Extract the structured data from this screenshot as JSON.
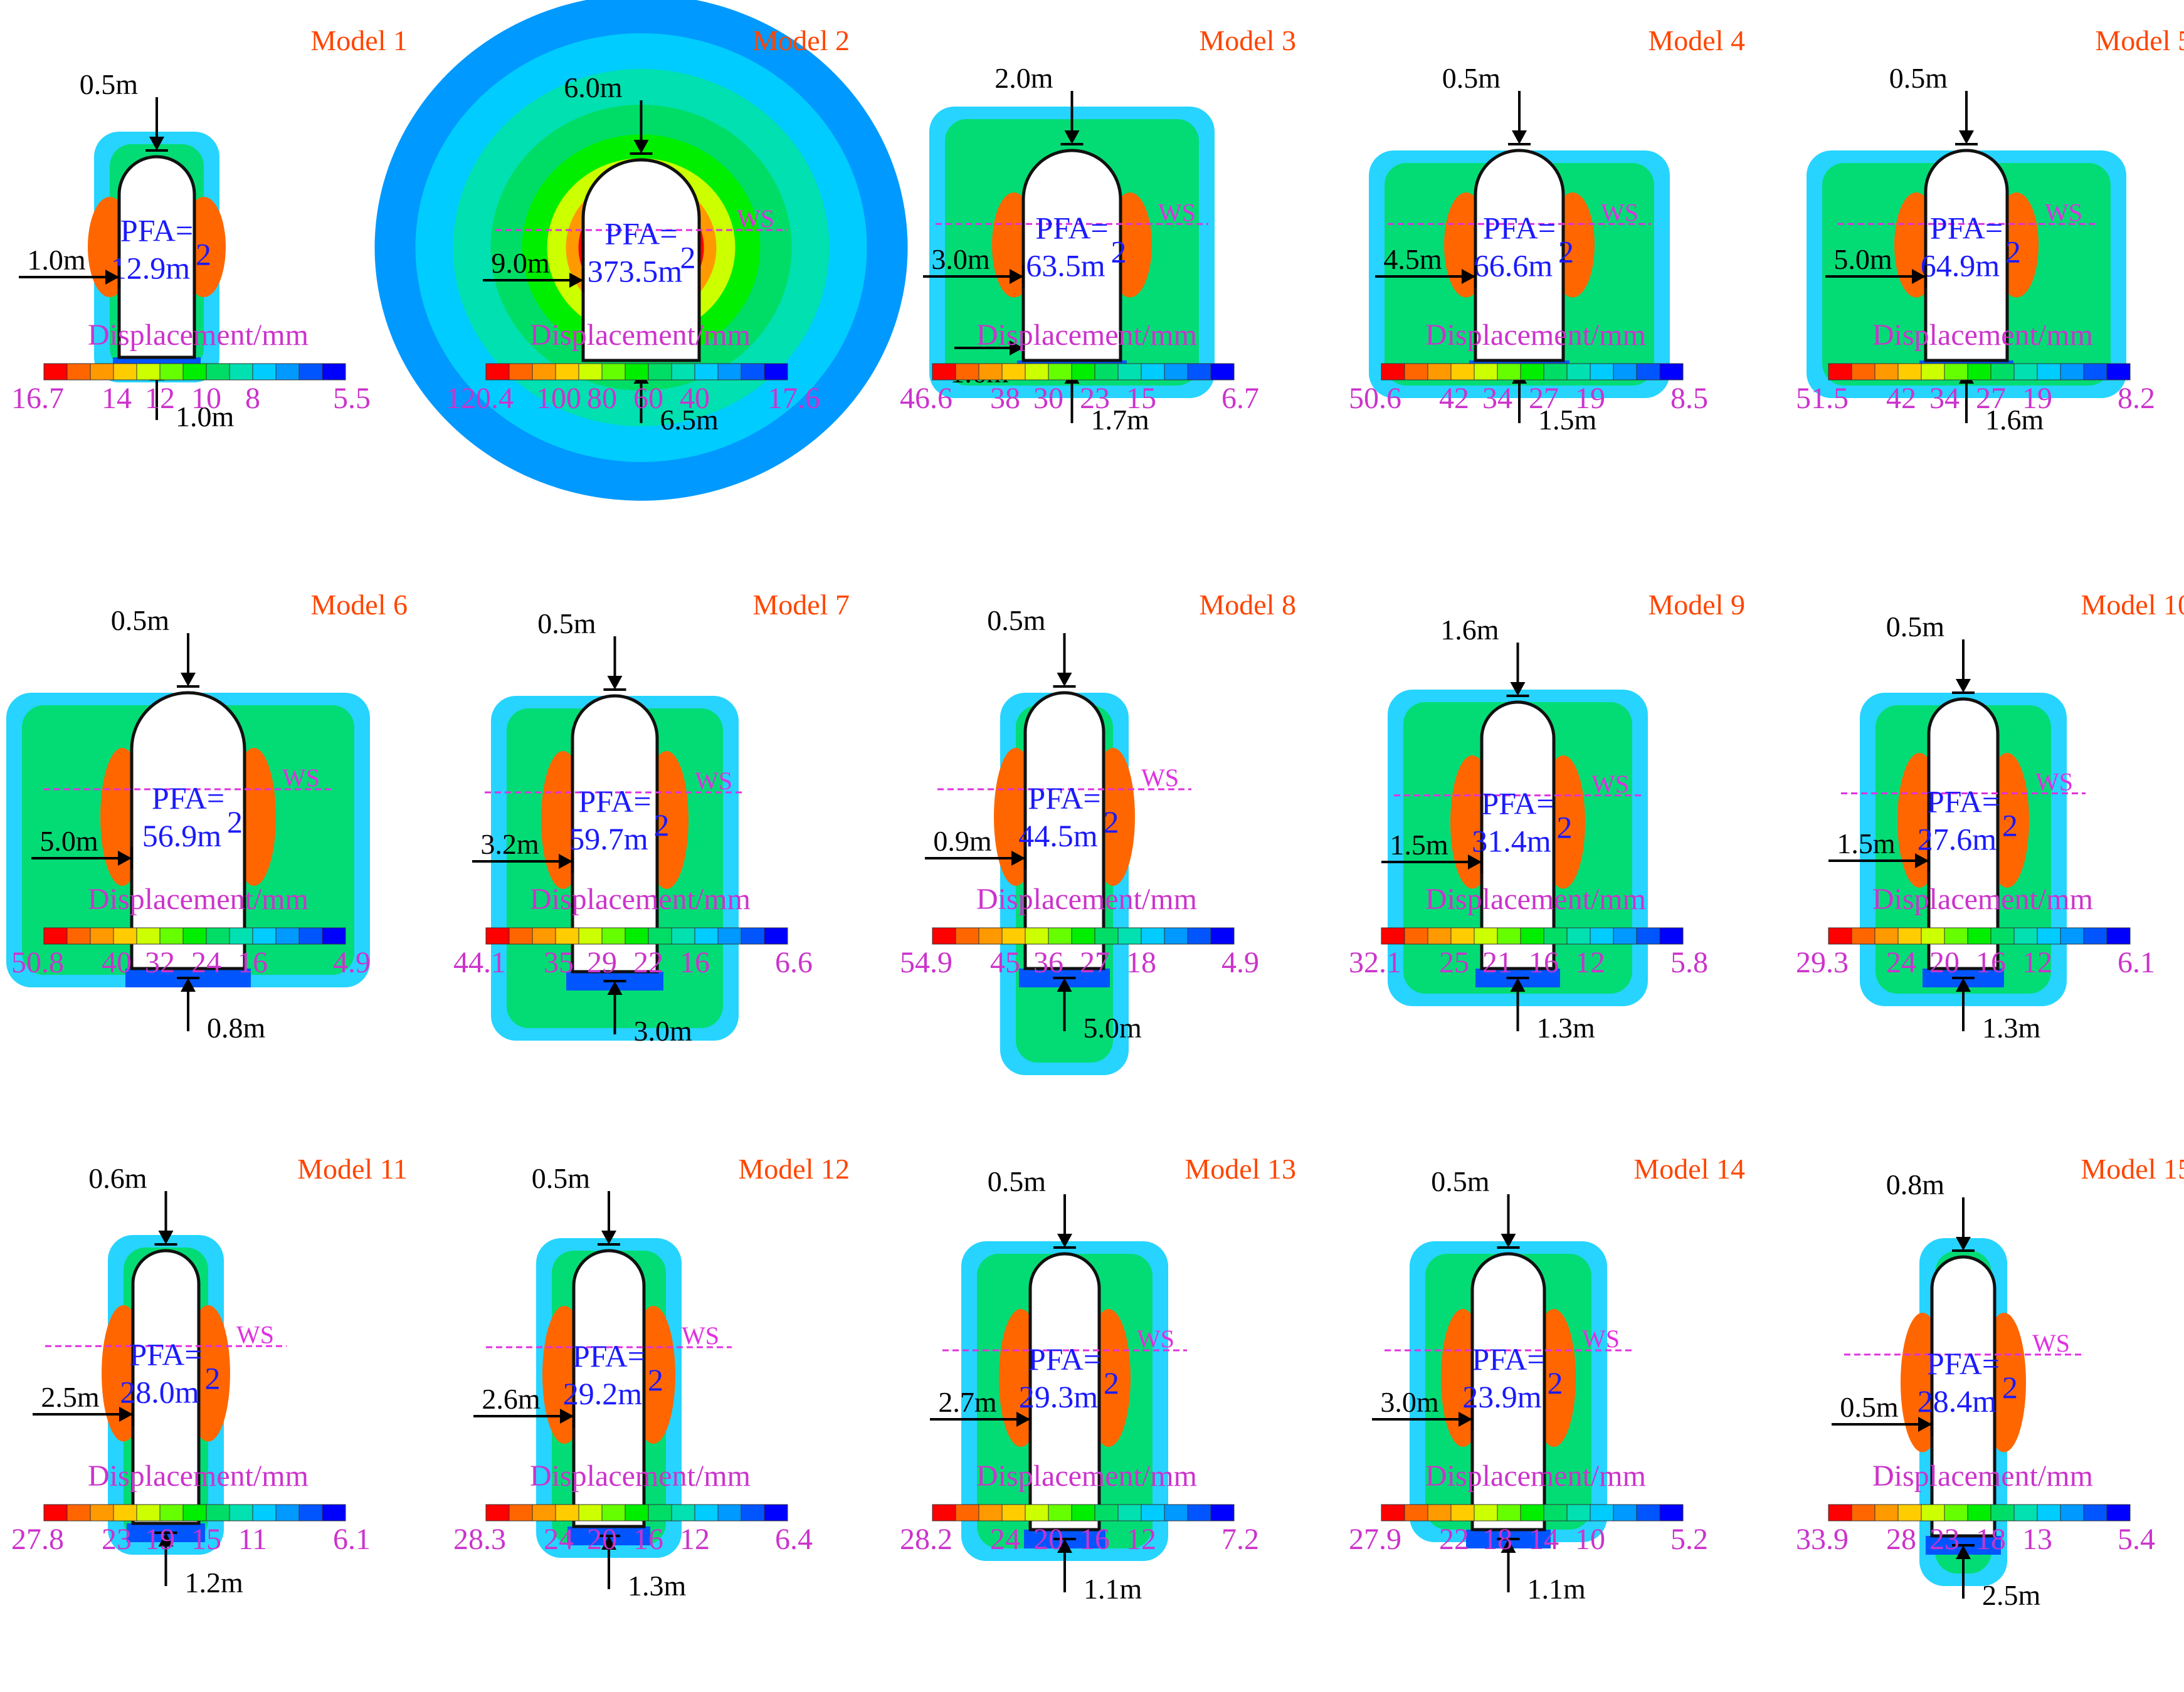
{
  "colorbar_colors": [
    "#ff0000",
    "#ff6600",
    "#ff9900",
    "#ffcc00",
    "#ccff00",
    "#66ff00",
    "#00ee00",
    "#00dd66",
    "#00e0b0",
    "#00ccff",
    "#0099ff",
    "#0055ff",
    "#0000ff"
  ],
  "displacement_label": "Displacement/mm",
  "pfa_label": "PFA=",
  "ws_label": "WS",
  "models": [
    {
      "id": "model-1",
      "title": "Model 1",
      "pfa": "12.9m",
      "dims": [
        "0.5m",
        "1.0m",
        "1.0m"
      ],
      "ticks": [
        "16.7",
        "14",
        "12",
        "10",
        "8",
        "5.5"
      ],
      "ws": false
    },
    {
      "id": "model-2",
      "title": "Model 2",
      "pfa": "373.5m",
      "dims": [
        "6.0m",
        "9.0m",
        "6.5m"
      ],
      "ticks": [
        "120.4",
        "100",
        "80",
        "60",
        "40",
        "17.6"
      ],
      "ws": true
    },
    {
      "id": "model-3",
      "title": "Model 3",
      "pfa": "63.5m",
      "dims": [
        "2.0m",
        "3.0m",
        "1.6m",
        "1.7m"
      ],
      "ticks": [
        "46.6",
        "38",
        "30",
        "23",
        "15",
        "6.7"
      ],
      "ws": true
    },
    {
      "id": "model-4",
      "title": "Model 4",
      "pfa": "66.6m",
      "dims": [
        "0.5m",
        "4.5m",
        "1.5m"
      ],
      "ticks": [
        "50.6",
        "42",
        "34",
        "27",
        "19",
        "8.5"
      ],
      "ws": true
    },
    {
      "id": "model-5",
      "title": "Model 5",
      "pfa": "64.9m",
      "dims": [
        "0.5m",
        "5.0m",
        "1.6m"
      ],
      "ticks": [
        "51.5",
        "42",
        "34",
        "27",
        "19",
        "8.2"
      ],
      "ws": true
    },
    {
      "id": "model-6",
      "title": "Model 6",
      "pfa": "56.9m",
      "dims": [
        "0.5m",
        "5.0m",
        "0.8m"
      ],
      "ticks": [
        "50.8",
        "40",
        "32",
        "24",
        "16",
        "4.9"
      ],
      "ws": true
    },
    {
      "id": "model-7",
      "title": "Model 7",
      "pfa": "59.7m",
      "dims": [
        "0.5m",
        "3.2m",
        "3.0m"
      ],
      "ticks": [
        "44.1",
        "35",
        "29",
        "22",
        "16",
        "6.6"
      ],
      "ws": true
    },
    {
      "id": "model-8",
      "title": "Model 8",
      "pfa": "44.5m",
      "dims": [
        "0.5m",
        "0.9m",
        "5.0m"
      ],
      "ticks": [
        "54.9",
        "45",
        "36",
        "27",
        "18",
        "4.9"
      ],
      "ws": true
    },
    {
      "id": "model-9",
      "title": "Model 9",
      "pfa": "31.4m",
      "dims": [
        "1.6m",
        "1.5m",
        "1.3m"
      ],
      "ticks": [
        "32.1",
        "25",
        "21",
        "16",
        "12",
        "5.8"
      ],
      "ws": true
    },
    {
      "id": "model-10",
      "title": "Model 10",
      "pfa": "27.6m",
      "dims": [
        "0.5m",
        "1.5m",
        "1.3m"
      ],
      "ticks": [
        "29.3",
        "24",
        "20",
        "16",
        "12",
        "6.1"
      ],
      "ws": true
    },
    {
      "id": "model-11",
      "title": "Model 11",
      "pfa": "28.0m",
      "dims": [
        "0.6m",
        "2.5m",
        "1.2m"
      ],
      "ticks": [
        "27.8",
        "23",
        "19",
        "15",
        "11",
        "6.1"
      ],
      "ws": true
    },
    {
      "id": "model-12",
      "title": "Model 12",
      "pfa": "29.2m",
      "dims": [
        "0.5m",
        "2.6m",
        "1.3m"
      ],
      "ticks": [
        "28.3",
        "24",
        "20",
        "16",
        "12",
        "6.4"
      ],
      "ws": true
    },
    {
      "id": "model-13",
      "title": "Model 13",
      "pfa": "29.3m",
      "dims": [
        "0.5m",
        "2.7m",
        "1.1m"
      ],
      "ticks": [
        "28.2",
        "24",
        "20",
        "16",
        "12",
        "7.2"
      ],
      "ws": true
    },
    {
      "id": "model-14",
      "title": "Model 14",
      "pfa": "23.9m",
      "dims": [
        "0.5m",
        "3.0m",
        "1.1m"
      ],
      "ticks": [
        "27.9",
        "22",
        "18",
        "14",
        "10",
        "5.2"
      ],
      "ws": true
    },
    {
      "id": "model-15",
      "title": "Model 15",
      "pfa": "28.4m",
      "dims": [
        "0.8m",
        "0.5m",
        "2.5m"
      ],
      "ticks": [
        "33.9",
        "28",
        "23",
        "18",
        "13",
        "5.4"
      ],
      "ws": true
    }
  ]
}
